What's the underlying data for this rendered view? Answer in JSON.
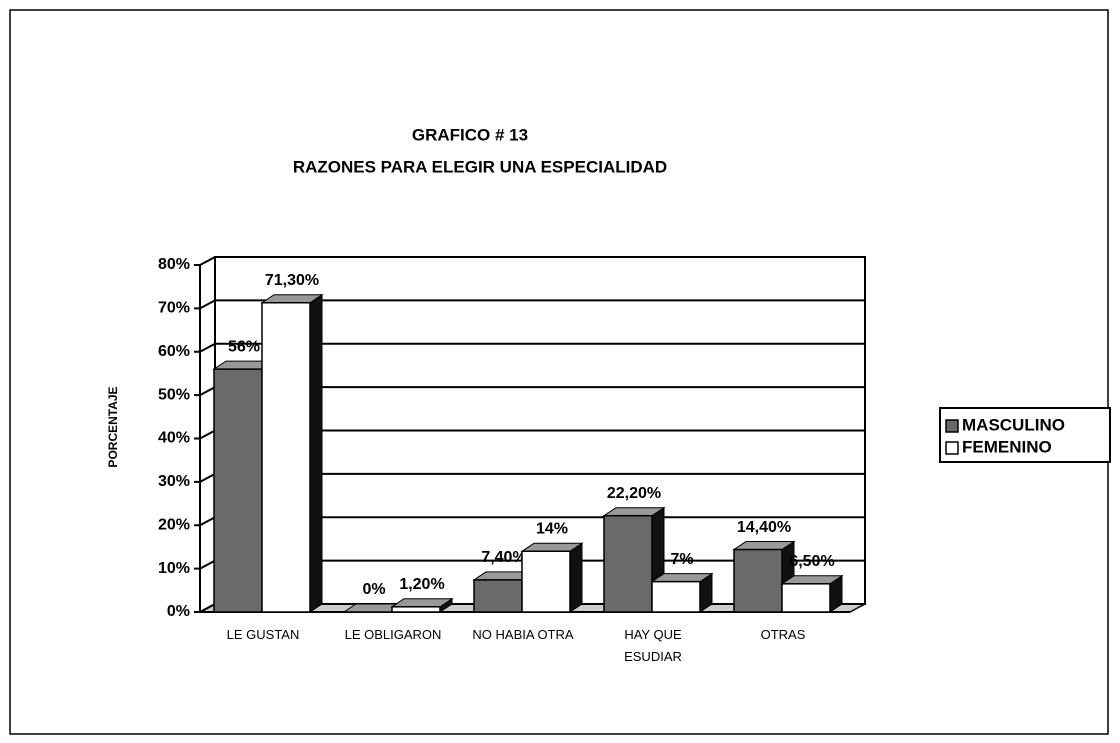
{
  "chart_data": {
    "type": "bar3d",
    "title": [
      "GRAFICO # 13",
      "RAZONES PARA ELEGIR UNA ESPECIALIDAD"
    ],
    "y_label": "PORCENTAJE",
    "categories": [
      "LE GUSTAN",
      "LE OBLIGARON",
      "NO HABIA OTRA",
      "HAY QUE\nESUDIAR",
      "OTRAS"
    ],
    "series": [
      {
        "name": "MASCULINO",
        "color": "#6a6a6a",
        "values": [
          56,
          0,
          7.4,
          22.2,
          14.4
        ],
        "value_labels": [
          "56%",
          "0%",
          "7,40%",
          "22,20%",
          "14,40%"
        ]
      },
      {
        "name": "FEMENINO",
        "color": "#ffffff",
        "values": [
          71.3,
          1.2,
          14,
          7,
          6.5
        ],
        "value_labels": [
          "71,30%",
          "1,20%",
          "14%",
          "7%",
          "6,50%"
        ]
      }
    ],
    "ylim": [
      0,
      80
    ],
    "yticks": [
      {
        "value": 0,
        "label": "0%"
      },
      {
        "value": 10,
        "label": "10%"
      },
      {
        "value": 20,
        "label": "20%"
      },
      {
        "value": 30,
        "label": "30%"
      },
      {
        "value": 40,
        "label": "40%"
      },
      {
        "value": 50,
        "label": "50%"
      },
      {
        "value": 60,
        "label": "60%"
      },
      {
        "value": 70,
        "label": "70%"
      },
      {
        "value": 80,
        "label": "80%"
      }
    ],
    "grid": true,
    "legend": "right"
  }
}
